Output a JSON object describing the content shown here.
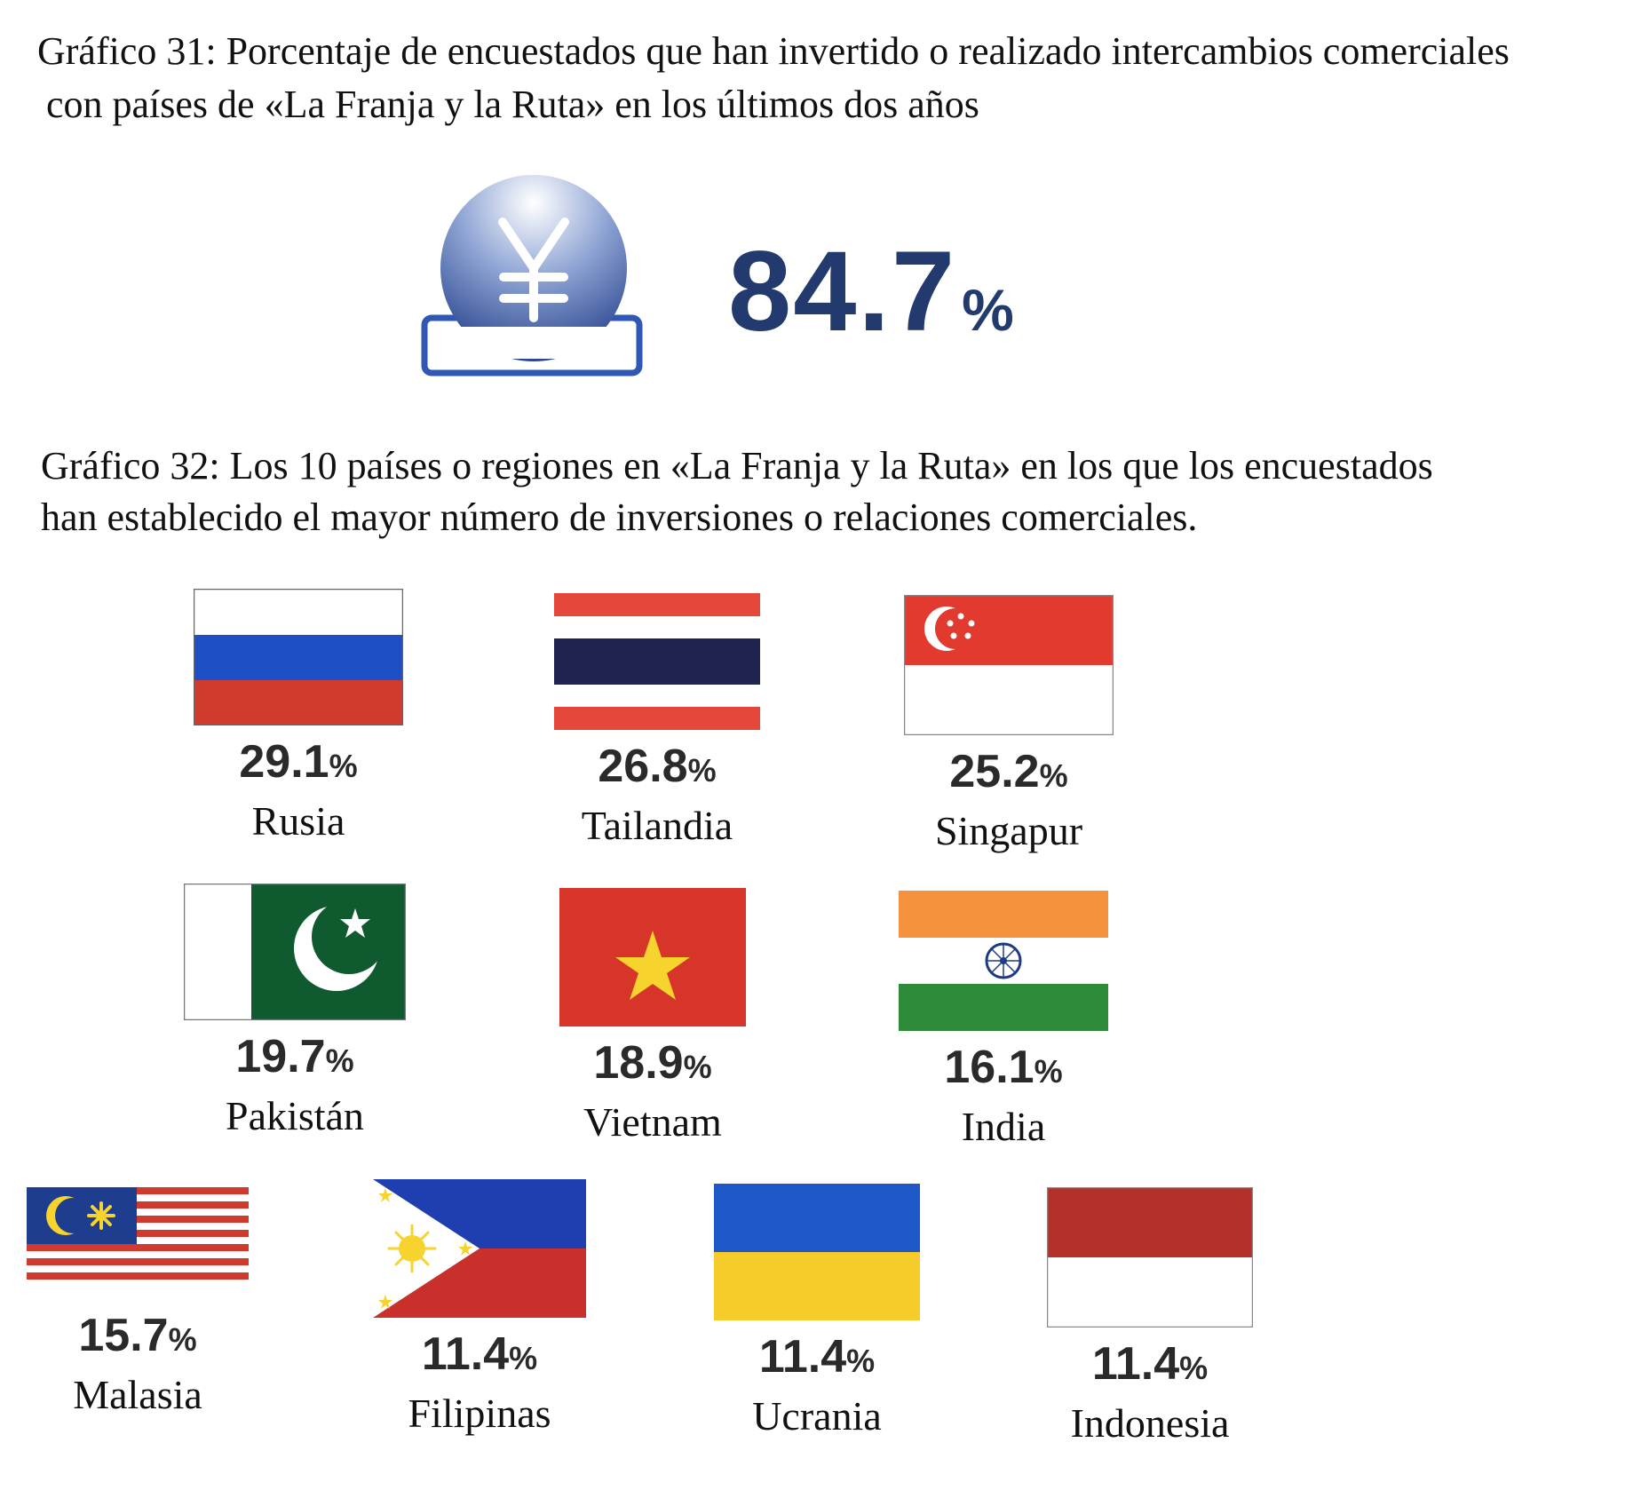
{
  "chart31": {
    "title_line1": "Gráfico 31: Porcentaje de encuestados que han invertido o realizado intercambios comerciales",
    "title_line2": "con países de «La Franja y la Ruta» en los últimos dos años",
    "value": "84.7",
    "unit": "%",
    "icon": "yen-coin-icon",
    "accent_color": "#233a6e"
  },
  "chart32": {
    "title_line1": "Gráfico 32: Los 10 países o regiones en «La Franja y la Ruta» en los que los encuestados",
    "title_line2": "han establecido el mayor número de inversiones o relaciones comerciales."
  },
  "chart_data": [
    {
      "type": "table",
      "title": "Gráfico 31: Porcentaje de encuestados que han invertido o realizado intercambios comerciales con países de «La Franja y la Ruta» en los últimos dos años",
      "values": [
        84.7
      ],
      "unit": "%"
    },
    {
      "type": "table",
      "title": "Gráfico 32: Los 10 países o regiones en «La Franja y la Ruta» en los que los encuestados han establecido el mayor número de inversiones o relaciones comerciales.",
      "categories": [
        "Rusia",
        "Tailandia",
        "Singapur",
        "Pakistán",
        "Vietnam",
        "India",
        "Malasia",
        "Filipinas",
        "Ucrania",
        "Indonesia"
      ],
      "values": [
        29.1,
        26.8,
        25.2,
        19.7,
        18.9,
        16.1,
        15.7,
        11.4,
        11.4,
        11.4
      ],
      "unit": "%"
    }
  ],
  "countries": [
    {
      "name": "Rusia",
      "value": "29.1",
      "unit": "%",
      "flag": "russia-flag-icon"
    },
    {
      "name": "Tailandia",
      "value": "26.8",
      "unit": "%",
      "flag": "thailand-flag-icon"
    },
    {
      "name": "Singapur",
      "value": "25.2",
      "unit": "%",
      "flag": "singapore-flag-icon"
    },
    {
      "name": "Pakistán",
      "value": "19.7",
      "unit": "%",
      "flag": "pakistan-flag-icon"
    },
    {
      "name": "Vietnam",
      "value": "18.9",
      "unit": "%",
      "flag": "vietnam-flag-icon"
    },
    {
      "name": "India",
      "value": "16.1",
      "unit": "%",
      "flag": "india-flag-icon"
    },
    {
      "name": "Malasia",
      "value": "15.7",
      "unit": "%",
      "flag": "malaysia-flag-icon"
    },
    {
      "name": "Filipinas",
      "value": "11.4",
      "unit": "%",
      "flag": "philippines-flag-icon"
    },
    {
      "name": "Ucrania",
      "value": "11.4",
      "unit": "%",
      "flag": "ukraine-flag-icon"
    },
    {
      "name": "Indonesia",
      "value": "11.4",
      "unit": "%",
      "flag": "indonesia-flag-icon"
    }
  ]
}
